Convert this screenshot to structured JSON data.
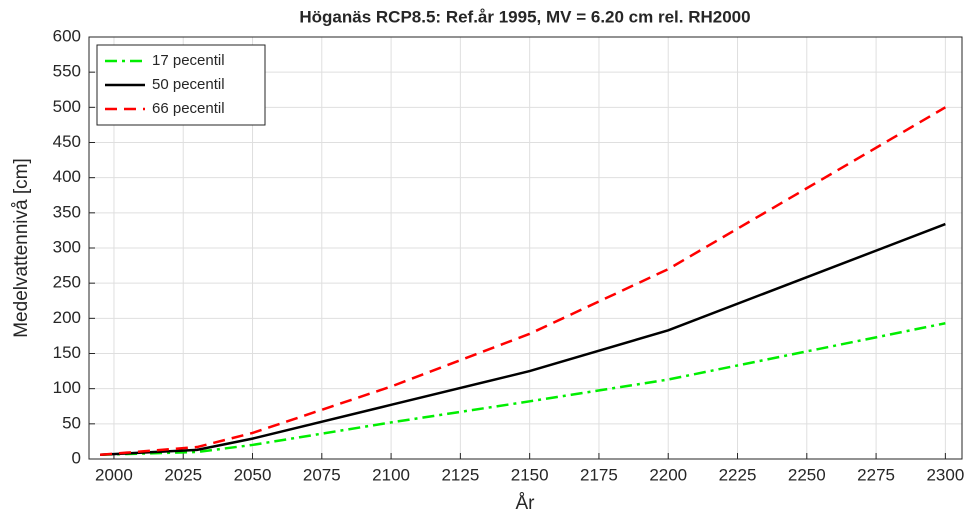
{
  "chart_data": {
    "type": "line",
    "title": "Höganäs RCP8.5: Ref.år 1995, MV = 6.20 cm rel. RH2000",
    "x_label": "År",
    "y_label": "Medelvattennivå [cm]",
    "x": [
      1995,
      2030,
      2050,
      2100,
      2150,
      2200,
      2300
    ],
    "series": [
      {
        "name": "17 pecentil",
        "color": "#00ee00",
        "dash": "dashdot",
        "values": [
          6,
          10,
          20,
          52,
          82,
          113,
          193
        ]
      },
      {
        "name": "50 pecentil",
        "color": "#000000",
        "dash": "solid",
        "values": [
          6,
          13,
          29,
          77,
          125,
          183,
          334
        ]
      },
      {
        "name": "66 pecentil",
        "color": "#ff0000",
        "dash": "dashed",
        "values": [
          6,
          17,
          37,
          103,
          178,
          270,
          500
        ]
      }
    ],
    "xlim": [
      1991,
      2306
    ],
    "ylim": [
      0,
      600
    ],
    "xticks": [
      2000,
      2025,
      2050,
      2075,
      2100,
      2125,
      2150,
      2175,
      2200,
      2225,
      2250,
      2275,
      2300
    ],
    "yticks": [
      0,
      50,
      100,
      150,
      200,
      250,
      300,
      350,
      400,
      450,
      500,
      550,
      600
    ],
    "grid": true,
    "legend": "upper left"
  }
}
